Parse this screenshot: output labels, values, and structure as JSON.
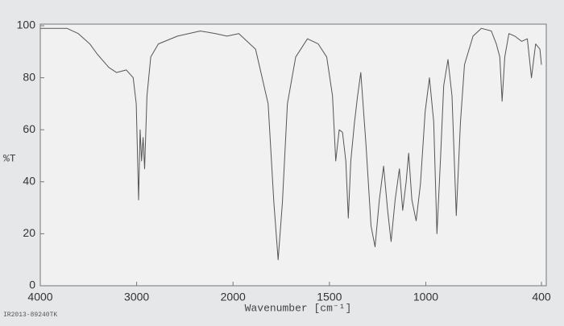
{
  "chart_data": {
    "type": "line",
    "y_label": "%T",
    "x_label": "Wavenumber [cm⁻¹]",
    "footnote": "IR2013-89240TK",
    "x": [
      4000,
      3723,
      3605,
      3486,
      3407,
      3289,
      3209,
      3107,
      3036,
      3004,
      2980,
      2964,
      2949,
      2933,
      2917,
      2893,
      2854,
      2775,
      2577,
      2340,
      2182,
      2063,
      1970,
      1883,
      1818,
      1788,
      1766,
      1744,
      1718,
      1675,
      1614,
      1558,
      1514,
      1484,
      1467,
      1449,
      1432,
      1415,
      1402,
      1389,
      1371,
      1354,
      1337,
      1310,
      1284,
      1263,
      1241,
      1219,
      1198,
      1180,
      1159,
      1137,
      1120,
      1102,
      1089,
      1072,
      1050,
      1028,
      1003,
      981,
      959,
      942,
      924,
      907,
      885,
      864,
      842,
      820,
      799,
      755,
      712,
      660,
      634,
      616,
      604,
      590,
      569,
      538,
      503,
      473,
      452,
      430,
      408,
      400
    ],
    "values": [
      99,
      99,
      97,
      93,
      89,
      84,
      82,
      83,
      80,
      70,
      33,
      60,
      48,
      57,
      45,
      73,
      88,
      93,
      96,
      98,
      97,
      96,
      97,
      91,
      70,
      32,
      10,
      32,
      70,
      88,
      95,
      93,
      88,
      73,
      48,
      60,
      59,
      48,
      26,
      48,
      62,
      73,
      82,
      54,
      23,
      15,
      33,
      46,
      29,
      17,
      33,
      45,
      29,
      40,
      51,
      33,
      25,
      39,
      67,
      80,
      63,
      20,
      48,
      77,
      87,
      73,
      27,
      63,
      85,
      96,
      99,
      98,
      93,
      88,
      71,
      88,
      97,
      96,
      94,
      95,
      80,
      93,
      91,
      85
    ],
    "color": "#555555",
    "xlim": [
      4000,
      400
    ],
    "xticks": [
      4000,
      3000,
      2000,
      1500,
      1000,
      400
    ],
    "x_scale_break": 2000,
    "x_scale_factor": 2,
    "ylim": [
      0,
      100
    ],
    "yticks": [
      0,
      20,
      40,
      60,
      80,
      100
    ],
    "grid": false
  }
}
